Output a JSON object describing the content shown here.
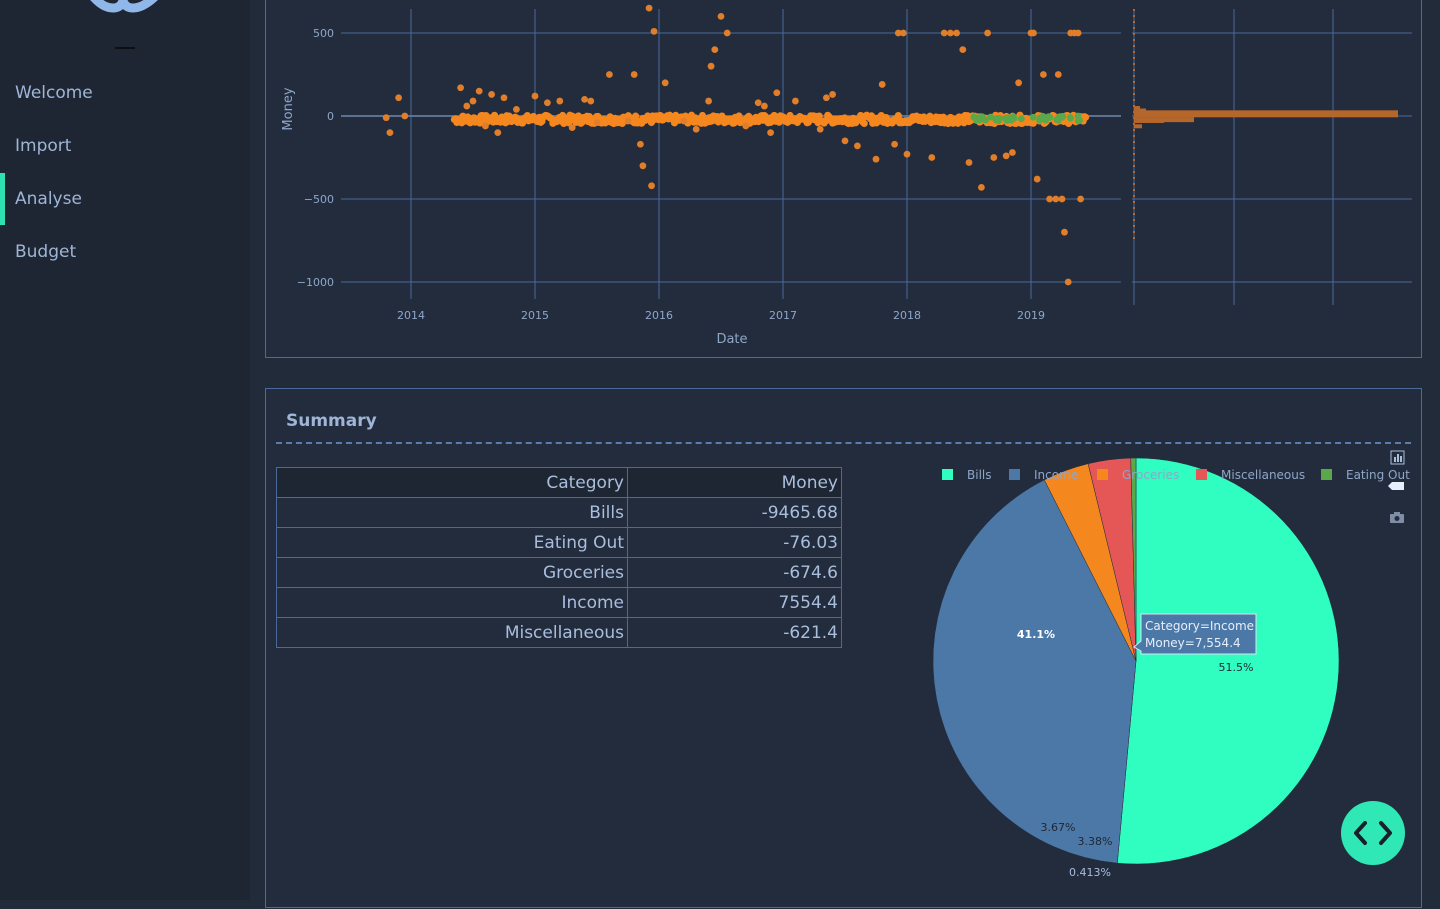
{
  "sidebar": {
    "items": [
      {
        "label": "Welcome",
        "active": false
      },
      {
        "label": "Import",
        "active": false
      },
      {
        "label": "Analyse",
        "active": true
      },
      {
        "label": "Budget",
        "active": false
      }
    ]
  },
  "scatter": {
    "ylabel": "Money",
    "xlabel": "Date",
    "y_ticks": [
      "500",
      "0",
      "−500",
      "−1000"
    ],
    "x_ticks": [
      "2014",
      "2015",
      "2016",
      "2017",
      "2018",
      "2019"
    ]
  },
  "summary": {
    "title": "Summary",
    "table": {
      "headers": [
        "Category",
        "Money"
      ],
      "rows": [
        [
          "Bills",
          "-9465.68"
        ],
        [
          "Eating Out",
          "-76.03"
        ],
        [
          "Groceries",
          "-674.6"
        ],
        [
          "Income",
          "7554.4"
        ],
        [
          "Miscellaneous",
          "-621.4"
        ]
      ]
    }
  },
  "tooltip": {
    "line1": "Category=Income",
    "line2": "Money=7,554.4"
  },
  "chart_data": [
    {
      "type": "scatter",
      "title": "",
      "xlabel": "Date",
      "ylabel": "Money",
      "x_ticks": [
        "2014",
        "2015",
        "2016",
        "2017",
        "2018",
        "2019"
      ],
      "ylim": [
        -1100,
        600
      ],
      "series": [
        {
          "name": "Groceries",
          "color": "#f5871f"
        },
        {
          "name": "Eating Out",
          "color": "#5aa84a"
        },
        {
          "name": "Miscellaneous",
          "color": "#e45756"
        }
      ],
      "points": [
        [
          2013.8,
          -10
        ],
        [
          2013.83,
          -100
        ],
        [
          2013.9,
          110
        ],
        [
          2013.95,
          0
        ],
        [
          2014.4,
          170
        ],
        [
          2014.45,
          60
        ],
        [
          2014.5,
          90
        ],
        [
          2014.55,
          150
        ],
        [
          2014.6,
          -60
        ],
        [
          2014.65,
          130
        ],
        [
          2014.7,
          -100
        ],
        [
          2014.75,
          110
        ],
        [
          2014.85,
          40
        ],
        [
          2015.0,
          120
        ],
        [
          2015.1,
          80
        ],
        [
          2015.2,
          90
        ],
        [
          2015.3,
          -70
        ],
        [
          2015.4,
          100
        ],
        [
          2015.45,
          90
        ],
        [
          2015.5,
          -40
        ],
        [
          2015.6,
          250
        ],
        [
          2015.75,
          -30
        ],
        [
          2015.8,
          250
        ],
        [
          2015.85,
          -170
        ],
        [
          2015.87,
          -300
        ],
        [
          2015.92,
          650
        ],
        [
          2015.94,
          -420
        ],
        [
          2015.96,
          510
        ],
        [
          2016.05,
          200
        ],
        [
          2016.2,
          -30
        ],
        [
          2016.3,
          -80
        ],
        [
          2016.4,
          90
        ],
        [
          2016.42,
          300
        ],
        [
          2016.45,
          400
        ],
        [
          2016.5,
          600
        ],
        [
          2016.55,
          500
        ],
        [
          2016.7,
          -60
        ],
        [
          2016.8,
          80
        ],
        [
          2016.85,
          60
        ],
        [
          2016.9,
          -100
        ],
        [
          2016.95,
          140
        ],
        [
          2017.1,
          90
        ],
        [
          2017.3,
          -80
        ],
        [
          2017.35,
          110
        ],
        [
          2017.4,
          130
        ],
        [
          2017.5,
          -150
        ],
        [
          2017.6,
          -180
        ],
        [
          2017.75,
          -260
        ],
        [
          2017.8,
          190
        ],
        [
          2017.9,
          -170
        ],
        [
          2017.93,
          500
        ],
        [
          2017.97,
          500
        ],
        [
          2018.0,
          -230
        ],
        [
          2018.2,
          -250
        ],
        [
          2018.3,
          500
        ],
        [
          2018.35,
          500
        ],
        [
          2018.4,
          500
        ],
        [
          2018.45,
          400
        ],
        [
          2018.5,
          -280
        ],
        [
          2018.6,
          -430
        ],
        [
          2018.65,
          500
        ],
        [
          2018.7,
          -250
        ],
        [
          2018.8,
          -240
        ],
        [
          2018.85,
          -220
        ],
        [
          2018.9,
          200
        ],
        [
          2019.0,
          500
        ],
        [
          2019.02,
          500
        ],
        [
          2019.05,
          -380
        ],
        [
          2019.1,
          250
        ],
        [
          2019.15,
          -500
        ],
        [
          2019.2,
          -500
        ],
        [
          2019.22,
          250
        ],
        [
          2019.25,
          -500
        ],
        [
          2019.27,
          -700
        ],
        [
          2019.3,
          -1000
        ],
        [
          2019.32,
          500
        ],
        [
          2019.35,
          500
        ],
        [
          2019.38,
          500
        ],
        [
          2019.4,
          -500
        ]
      ],
      "band": {
        "x_range": [
          2014.35,
          2019.45
        ],
        "y": -20
      }
    },
    {
      "type": "pie",
      "title": "",
      "legend": [
        "Bills",
        "Income",
        "Groceries",
        "Miscellaneous",
        "Eating Out"
      ],
      "categories": [
        "Bills",
        "Income",
        "Groceries",
        "Miscellaneous",
        "Eating Out"
      ],
      "values": [
        51.5,
        41.1,
        3.67,
        3.38,
        0.413
      ],
      "labels": [
        "51.5%",
        "41.1%",
        "3.67%",
        "3.38%",
        "0.413%"
      ],
      "colors": [
        "#2ffec0",
        "#4c78a8",
        "#f5871f",
        "#e45756",
        "#5aa84a"
      ]
    }
  ]
}
